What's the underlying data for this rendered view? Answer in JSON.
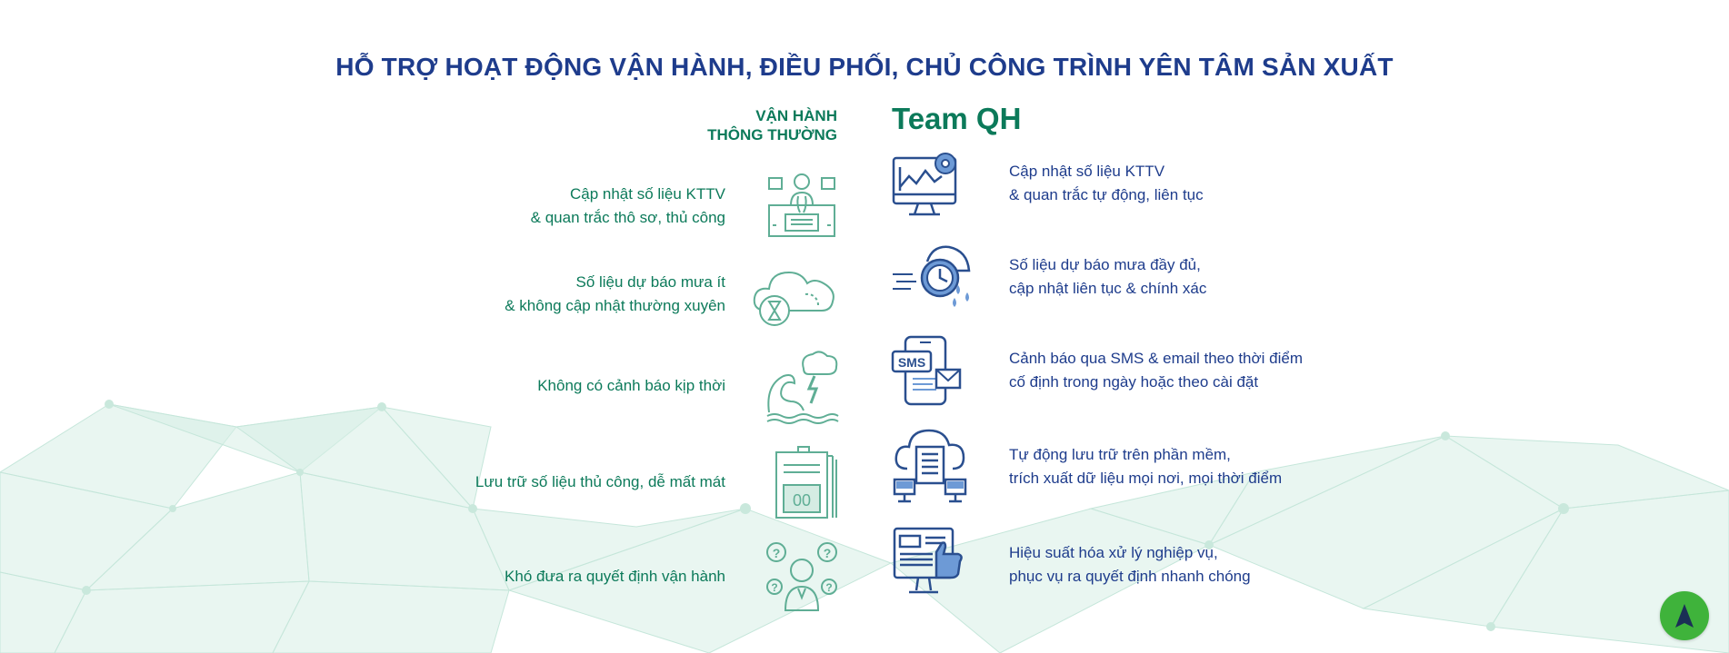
{
  "title": "HỖ TRỢ HOẠT ĐỘNG VẬN HÀNH, ĐIỀU PHỐI, CHỦ CÔNG TRÌNH YÊN TÂM SẢN XUẤT",
  "left_header": {
    "line1": "VẬN HÀNH",
    "line2": "THÔNG THƯỜNG"
  },
  "right_header": "Team QH",
  "rows": [
    {
      "left": {
        "line1": "Cập nhật số liệu KTTV",
        "line2": "& quan trắc thô sơ, thủ công"
      },
      "right": {
        "line1": "Cập nhật số liệu KTTV",
        "line2": "& quan trắc tự động, liên tục"
      }
    },
    {
      "left": {
        "line1": "Số liệu dự báo mưa ít",
        "line2": "& không cập nhật thường xuyên"
      },
      "right": {
        "line1": "Số liệu dự báo mưa đầy đủ,",
        "line2": "cập nhật liên tục & chính xác"
      }
    },
    {
      "left": {
        "line1": "Không có cảnh báo kịp thời",
        "line2": ""
      },
      "right": {
        "line1": "Cảnh báo qua SMS & email theo thời điểm",
        "line2": "cố định trong ngày hoặc theo cài đặt"
      }
    },
    {
      "left": {
        "line1": "Lưu trữ số liệu thủ công, dễ mất mát",
        "line2": ""
      },
      "right": {
        "line1": "Tự động lưu trữ trên phần mềm,",
        "line2": "trích xuất dữ liệu mọi nơi, mọi thời điểm"
      }
    },
    {
      "left": {
        "line1": "Khó đưa ra quyết định vận hành",
        "line2": ""
      },
      "right": {
        "line1": "Hiệu suất hóa xử lý nghiệp vụ,",
        "line2": "phục vụ ra quyết định nhanh chóng"
      }
    }
  ],
  "icons": {
    "left": [
      "manual-worker-icon",
      "cloud-hourglass-icon",
      "storm-wave-icon",
      "file-cabinet-icon",
      "confused-person-icon"
    ],
    "right": [
      "monitor-chart-icon",
      "cloud-clock-rain-icon",
      "sms-phone-icon",
      "cloud-server-icon",
      "monitor-thumbs-up-icon"
    ],
    "nav": "navigation-arrow-icon"
  },
  "icon_text": {
    "sms": "SMS",
    "counter": "00"
  },
  "colors": {
    "blue": "#1e3c8c",
    "green": "#0c7a5a",
    "icon_green": "#5fae95",
    "icon_blue": "#2a4f8f",
    "icon_light_blue": "#6d9ad6",
    "nav": "#3fb33b"
  }
}
